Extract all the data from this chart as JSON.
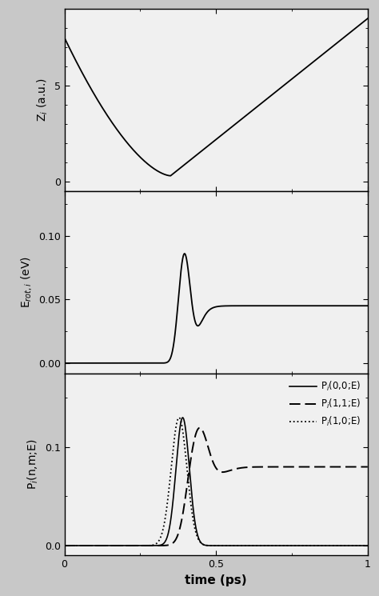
{
  "time_min": 0.0,
  "time_max": 1.0,
  "panel1_ylabel": "Z$_i$ (a.u.)",
  "panel1_ylim": [
    -0.5,
    9.0
  ],
  "panel1_yticks": [
    0,
    5
  ],
  "panel2_ylabel": "E$_{rot,i}$ (eV)",
  "panel2_ylim": [
    -0.008,
    0.135
  ],
  "panel2_yticks": [
    0,
    0.05,
    0.1
  ],
  "panel3_ylabel": "P$_i$(n,m;E)",
  "panel3_ylim": [
    -0.01,
    0.175
  ],
  "panel3_yticks": [
    0,
    0.1
  ],
  "xlabel": "time (ps)",
  "legend_labels": [
    "P$_i$(0,0;E)",
    "P$_i$(1,1;E)",
    "P$_i$(1,0;E)"
  ],
  "bg_color": "#c8c8c8",
  "plot_bg_color": "#f0f0f0"
}
